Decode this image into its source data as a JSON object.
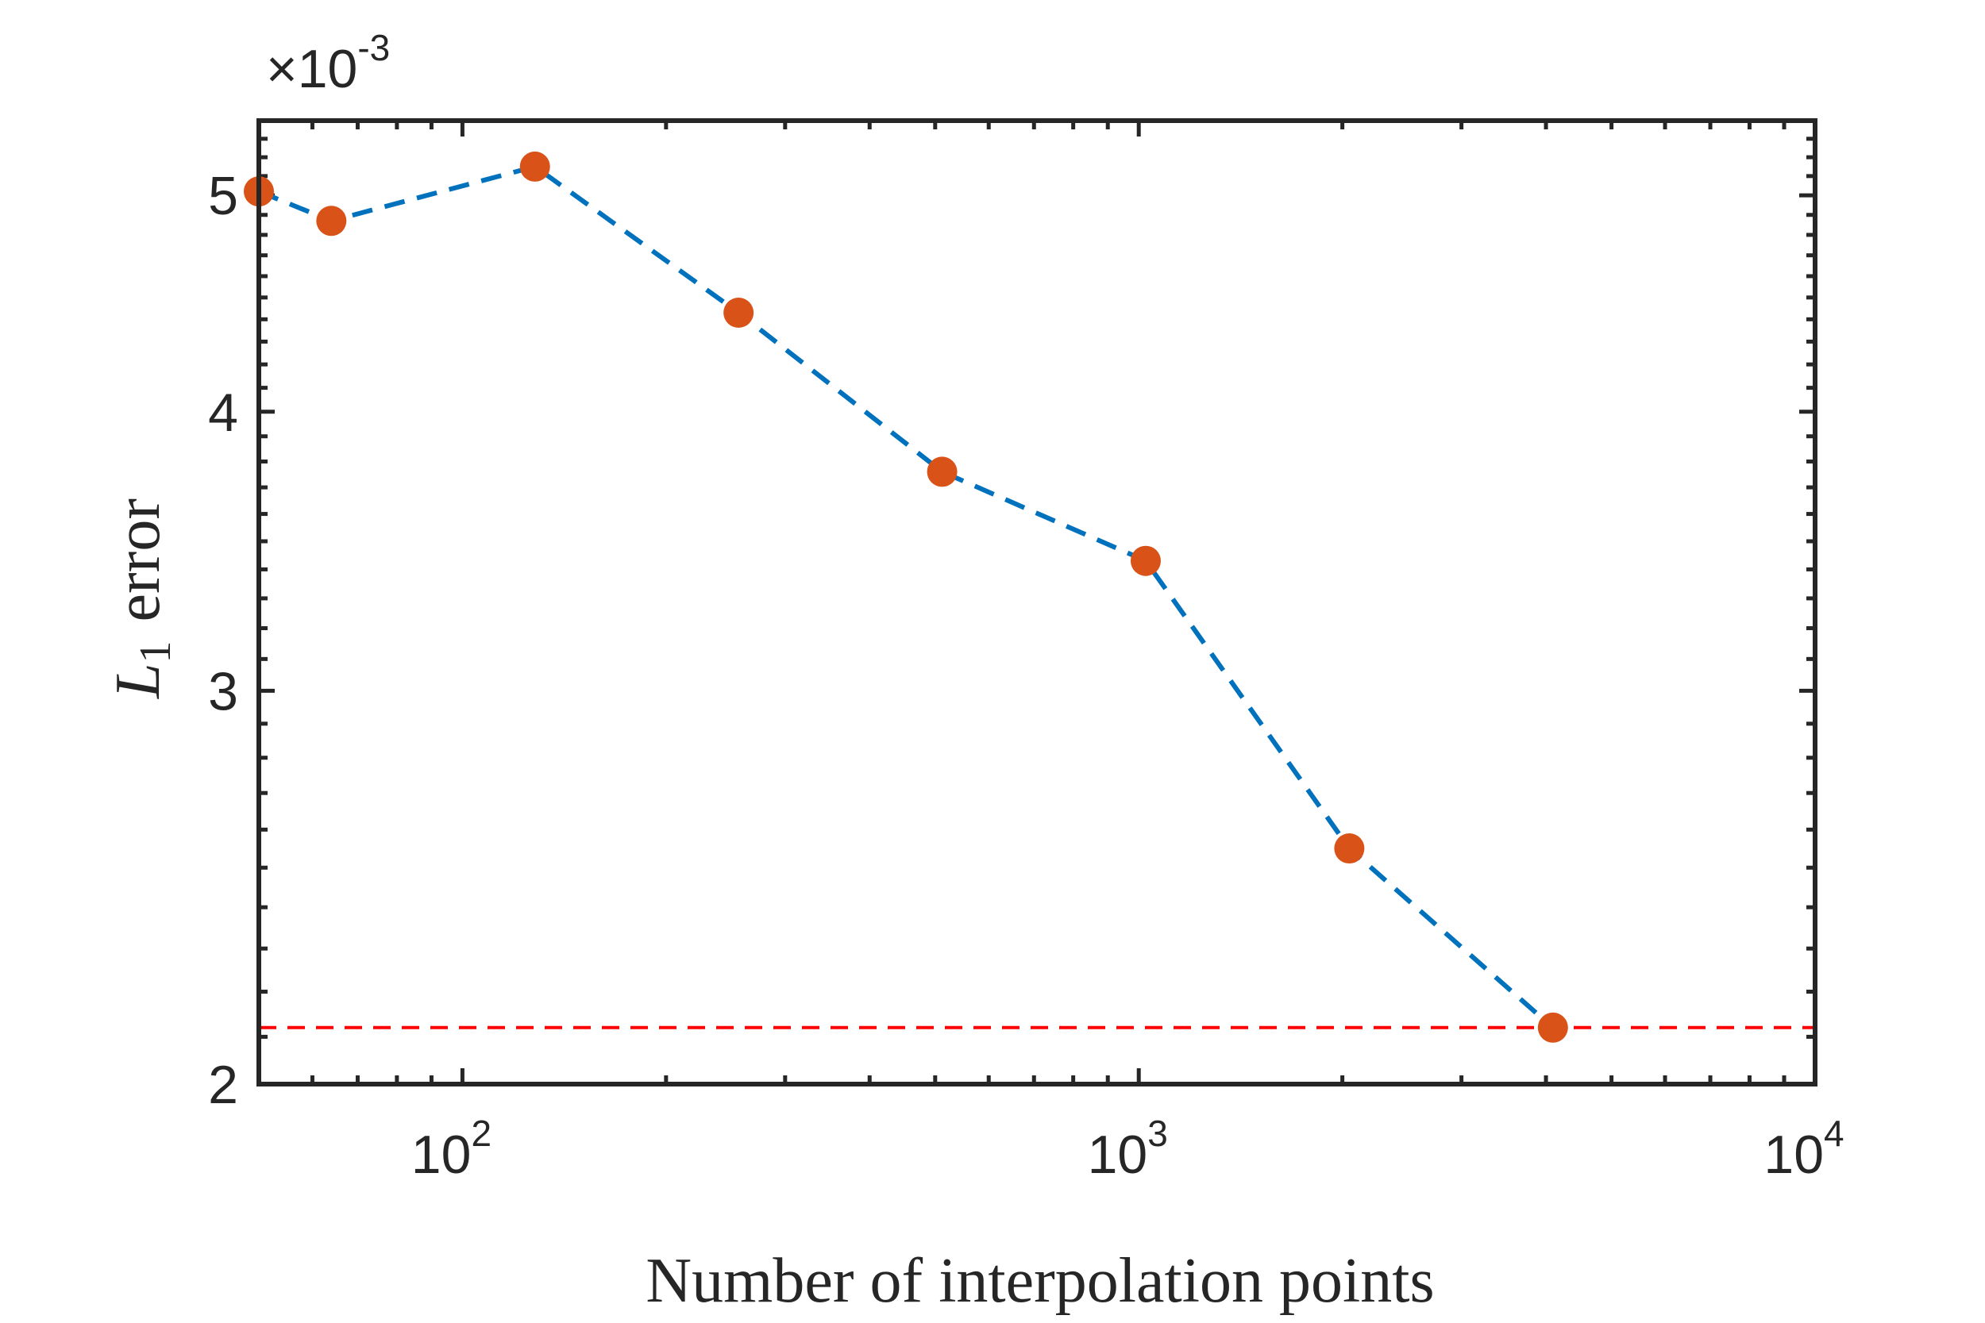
{
  "chart_data": {
    "type": "line",
    "x_scale": "log",
    "y_scale": "log",
    "xlabel": "Number of interpolation points",
    "ylabel": {
      "symbol": "L",
      "subscript": "1",
      "text": "error"
    },
    "y_multiplier": {
      "prefix": "×10",
      "exponent": "-3"
    },
    "xlim": [
      50,
      10000
    ],
    "ylim": [
      2.0,
      5.4
    ],
    "x_ticks": [
      {
        "value": 100,
        "base": "10",
        "exp": "2"
      },
      {
        "value": 1000,
        "base": "10",
        "exp": "3"
      },
      {
        "value": 10000,
        "base": "10",
        "exp": "4"
      }
    ],
    "y_ticks": [
      {
        "value": 2,
        "label": "2"
      },
      {
        "value": 3,
        "label": "3"
      },
      {
        "value": 4,
        "label": "4"
      },
      {
        "value": 5,
        "label": "5"
      }
    ],
    "series": [
      {
        "name": "L1 error",
        "line_style": "dashed",
        "line_color": "#0072BD",
        "marker_color": "#D95319",
        "points": [
          {
            "x": 50,
            "y": 5.02
          },
          {
            "x": 64,
            "y": 4.87
          },
          {
            "x": 128,
            "y": 5.15
          },
          {
            "x": 256,
            "y": 4.43
          },
          {
            "x": 512,
            "y": 3.76
          },
          {
            "x": 1024,
            "y": 3.43
          },
          {
            "x": 2048,
            "y": 2.55
          },
          {
            "x": 4096,
            "y": 2.12
          }
        ]
      }
    ],
    "reference_line": {
      "y": 2.12,
      "color": "#FF0000",
      "line_style": "dashed"
    }
  }
}
